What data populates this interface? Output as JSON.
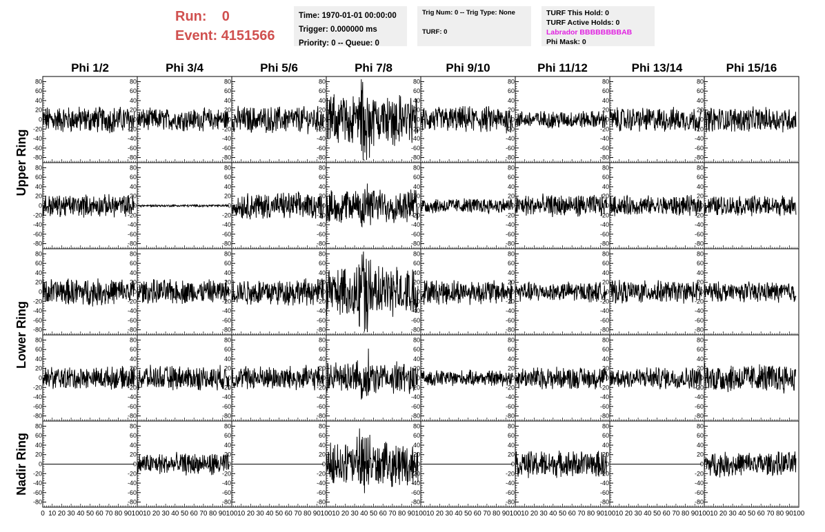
{
  "run_info": {
    "run_label": "Run:",
    "run_value": "0",
    "event_label": "Event:",
    "event_value": "4151566"
  },
  "time_box": {
    "time": "Time: 1970-01-01 00:00:00",
    "trigger": "Trigger: 0.000000 ms",
    "priority": "Priority: 0 -- Queue: 0"
  },
  "trig_box": {
    "trig": "Trig Num: 0 -- Trig Type: None",
    "turf": "TURF: 0"
  },
  "turf_box": {
    "this_hold": "TURF This Hold: 0",
    "active_holds": "TURF Active Holds: 0",
    "labrador": "Labrador BBBBBBBBAB",
    "phi_mask": "Phi Mask: 0"
  },
  "colors": {
    "run_text": "#d0504f",
    "labrador_text": "#e020e0",
    "info_box_bg": "#efefef",
    "trace": "#000000"
  },
  "column_headers": [
    "Phi 1/2",
    "Phi 3/4",
    "Phi 5/6",
    "Phi 7/8",
    "Phi 9/10",
    "Phi 11/12",
    "Phi 13/14",
    "Phi 15/16"
  ],
  "ring_labels": [
    "Upper Ring",
    "Lower Ring",
    "Nadir Ring"
  ],
  "chart_data": {
    "type": "line",
    "layout_grid": "5 rows x 8 columns of waveform panels",
    "ylim": [
      -85,
      85
    ],
    "y_ticks": [
      80,
      60,
      40,
      20,
      0,
      -20,
      -40,
      -60,
      -80
    ],
    "y_tick_labels": [
      "80",
      "60",
      "40",
      "20",
      "0",
      "-20",
      "-40",
      "-60",
      "-80"
    ],
    "xlim": [
      0,
      100
    ],
    "x_ticks": [
      0,
      10,
      20,
      30,
      40,
      50,
      60,
      70,
      80,
      90,
      100
    ],
    "x_tick_labels": [
      "0",
      "10",
      "20",
      "30",
      "40",
      "50",
      "60",
      "70",
      "80",
      "90",
      "100"
    ],
    "first_panel_x_label": "0",
    "samples_per_trace": 260,
    "panel_amplitudes": [
      [
        24,
        20,
        24,
        45,
        24,
        16,
        22,
        22
      ],
      [
        20,
        2,
        24,
        30,
        14,
        20,
        18,
        18
      ],
      [
        24,
        22,
        24,
        45,
        22,
        18,
        20,
        18
      ],
      [
        20,
        22,
        22,
        28,
        14,
        20,
        20,
        26
      ],
      [
        0,
        20,
        0,
        38,
        0,
        24,
        0,
        22
      ]
    ],
    "spike_center_x": 40,
    "spike_panels_column": 3
  }
}
